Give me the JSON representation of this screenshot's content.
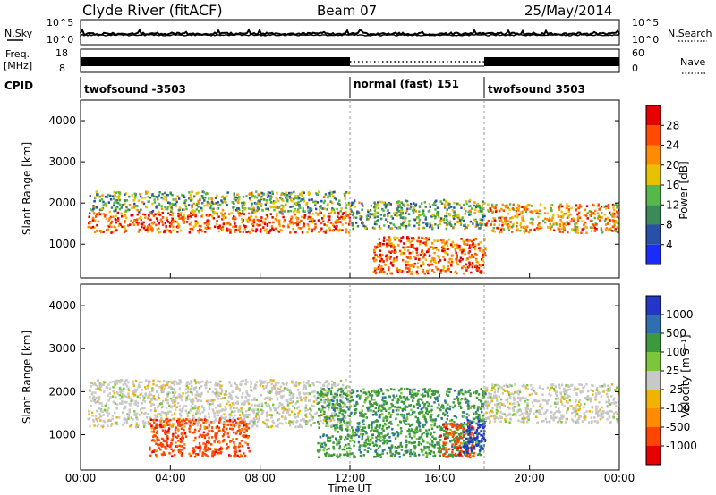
{
  "header": {
    "title": "Clyde River (fitACF)",
    "beam": "Beam 07",
    "date": "25/May/2014"
  },
  "nsky_panel": {
    "left_label": "N.Sky",
    "right_label": "N.Search",
    "left_ticks": [
      "10^5",
      "10^0"
    ],
    "right_ticks": [
      "10^5",
      "10^0"
    ]
  },
  "freq_panel": {
    "left_label_1": "Freq.",
    "left_label_2": "[MHz]",
    "right_label": "Nave",
    "left_ticks": [
      "18",
      "8"
    ],
    "right_ticks": [
      "60",
      "0"
    ]
  },
  "cpid_panel": {
    "label": "CPID",
    "segments": [
      {
        "text": "twofsound -3503",
        "start_hour": 0,
        "end_hour": 12
      },
      {
        "text": "normal (fast) 151",
        "start_hour": 12,
        "end_hour": 18
      },
      {
        "text": "twofsound 3503",
        "start_hour": 18,
        "end_hour": 24
      }
    ]
  },
  "axes": {
    "xlabel": "Time UT",
    "x_ticks": [
      "00:00",
      "04:00",
      "08:00",
      "12:00",
      "16:00",
      "20:00",
      "00:00"
    ],
    "ylabel": "Slant Range [km]",
    "y_ticks": [
      "1000",
      "2000",
      "3000",
      "4000"
    ]
  },
  "power_colorbar": {
    "label": "Power [dB]",
    "ticks": [
      "4",
      "8",
      "12",
      "16",
      "20",
      "24",
      "28"
    ],
    "colors": [
      "#1a2cff",
      "#2850a8",
      "#3a8a5a",
      "#57b84a",
      "#e8c200",
      "#ff8c00",
      "#ff4a00",
      "#e60000"
    ]
  },
  "velocity_colorbar": {
    "label": "Velocity [m s⁻¹]",
    "ticks": [
      "1000",
      "500",
      "100",
      "25",
      "-25",
      "-100",
      "-500",
      "-1000"
    ],
    "colors": [
      "#2436c8",
      "#2f6fb0",
      "#3c9a3c",
      "#7cc63c",
      "#c8c8c8",
      "#f0b400",
      "#ff8c00",
      "#ff4400",
      "#e60000"
    ]
  },
  "chart_data": [
    {
      "type": "heatmap",
      "title": "Power [dB]",
      "xlabel": "Time UT",
      "ylabel": "Slant Range [km]",
      "xlim_hours": [
        0,
        24
      ],
      "ylim_km": [
        180,
        4500
      ],
      "features": [
        {
          "t0": 0.3,
          "t1": 12,
          "r0": 1300,
          "r1": 1800,
          "power": 26
        },
        {
          "t0": 0.3,
          "t1": 12,
          "r0": 1800,
          "r1": 2300,
          "power": 14
        },
        {
          "t0": 12,
          "t1": 18,
          "r0": 1400,
          "r1": 2100,
          "power": 14
        },
        {
          "t0": 13,
          "t1": 18,
          "r0": 300,
          "r1": 1200,
          "power": 28
        },
        {
          "t0": 18,
          "t1": 24,
          "r0": 1300,
          "r1": 2000,
          "power": 24
        }
      ]
    },
    {
      "type": "heatmap",
      "title": "Velocity [m s⁻¹]",
      "xlabel": "Time UT",
      "ylabel": "Slant Range [km]",
      "xlim_hours": [
        0,
        24
      ],
      "ylim_km": [
        180,
        4500
      ],
      "features": [
        {
          "t0": 0.3,
          "t1": 12,
          "r0": 1200,
          "r1": 2300,
          "velocity": 0
        },
        {
          "t0": 3,
          "t1": 7.5,
          "r0": 500,
          "r1": 1400,
          "velocity": -500
        },
        {
          "t0": 10.5,
          "t1": 18,
          "r0": 500,
          "r1": 2100,
          "velocity": 100
        },
        {
          "t0": 16,
          "t1": 17.5,
          "r0": 500,
          "r1": 1300,
          "velocity": -500
        },
        {
          "t0": 17,
          "t1": 18,
          "r0": 600,
          "r1": 1400,
          "velocity": 1000
        },
        {
          "t0": 18,
          "t1": 24,
          "r0": 1300,
          "r1": 2200,
          "velocity": 0
        }
      ]
    }
  ]
}
